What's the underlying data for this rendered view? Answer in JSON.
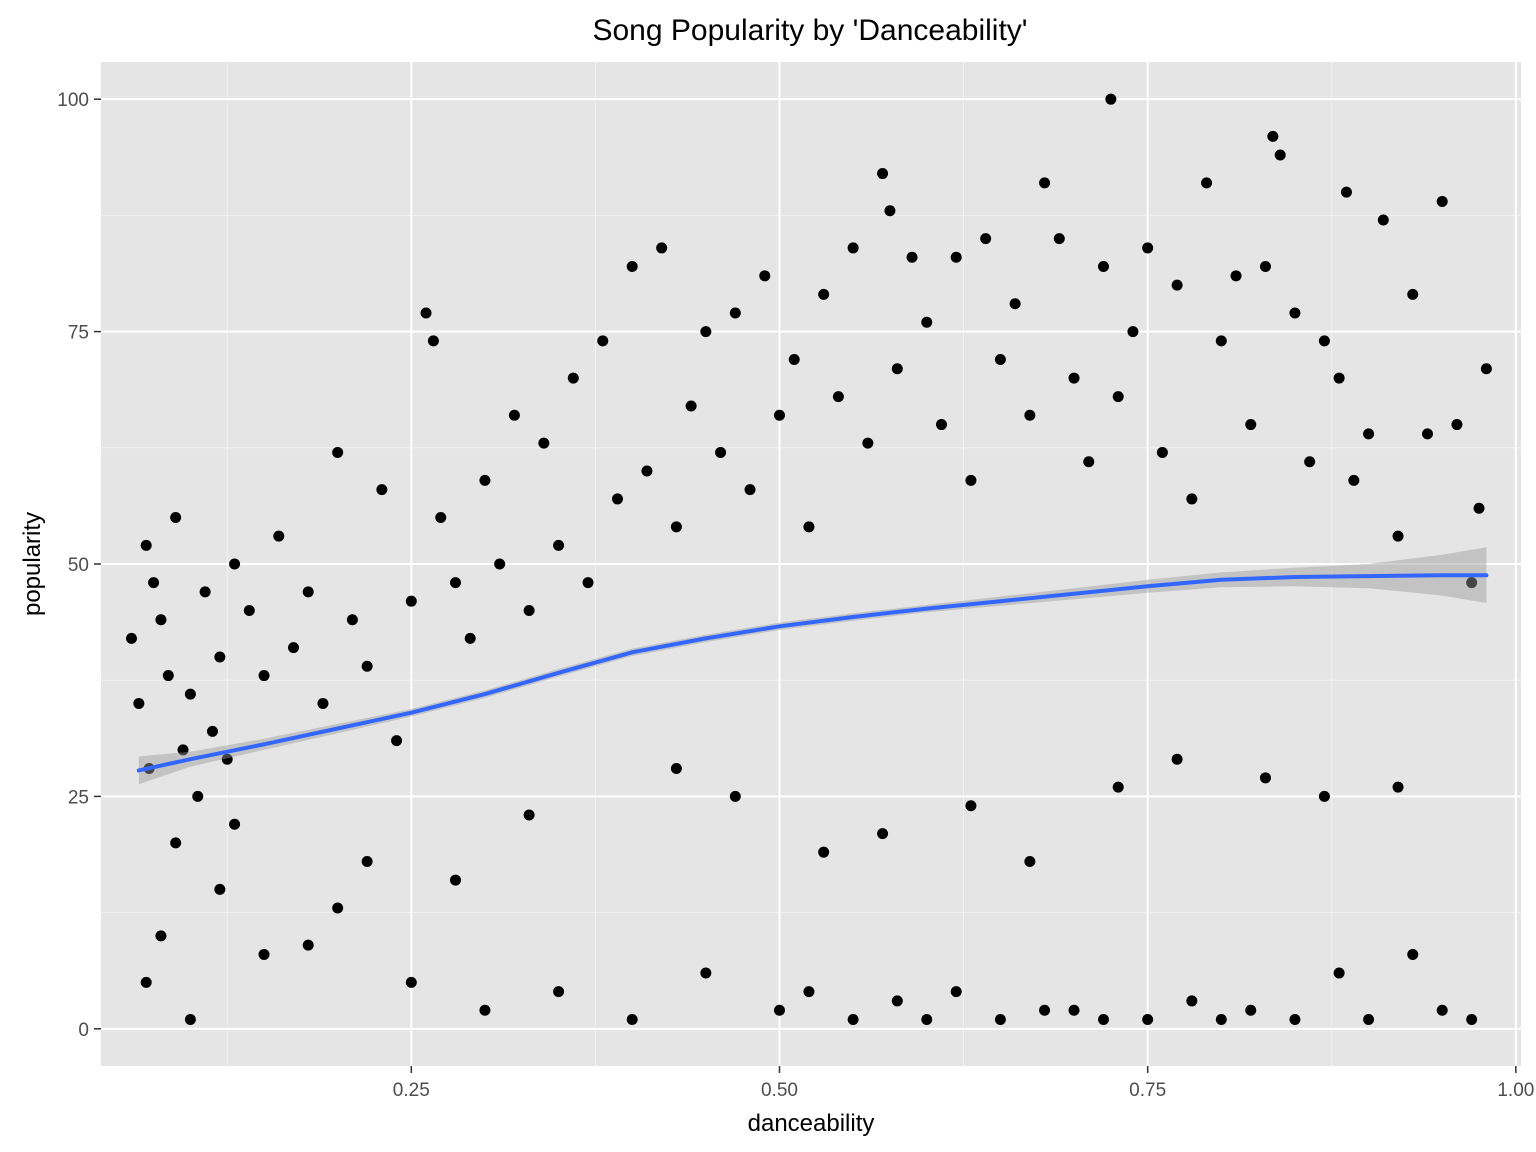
{
  "chart_data": {
    "type": "scatter",
    "title": "Song Popularity by 'Danceability'",
    "xlabel": "danceability",
    "ylabel": "popularity",
    "xlim": [
      0.0393,
      1.0035
    ],
    "ylim": [
      -4,
      104
    ],
    "x_ticks": [
      {
        "value": 0.25,
        "label": "0.25"
      },
      {
        "value": 0.5,
        "label": "0.50"
      },
      {
        "value": 0.75,
        "label": "0.75"
      },
      {
        "value": 1.0,
        "label": "1.00"
      }
    ],
    "y_ticks": [
      {
        "value": 0,
        "label": "0"
      },
      {
        "value": 25,
        "label": "25"
      },
      {
        "value": 50,
        "label": "50"
      },
      {
        "value": 75,
        "label": "75"
      },
      {
        "value": 100,
        "label": "100"
      }
    ],
    "grid": true,
    "panel_background": "#e5e5e5",
    "point_color": "#000000",
    "smooth_color": "#3366ff",
    "band_color": "#999999",
    "series": [
      {
        "kind": "points",
        "x": [
          0.06,
          0.065,
          0.07,
          0.072,
          0.075,
          0.08,
          0.085,
          0.09,
          0.095,
          0.1,
          0.105,
          0.11,
          0.115,
          0.12,
          0.125,
          0.13,
          0.14,
          0.15,
          0.16,
          0.17,
          0.18,
          0.19,
          0.2,
          0.21,
          0.22,
          0.23,
          0.24,
          0.25,
          0.26,
          0.265,
          0.27,
          0.28,
          0.29,
          0.3,
          0.31,
          0.32,
          0.33,
          0.34,
          0.35,
          0.36,
          0.37,
          0.38,
          0.39,
          0.4,
          0.41,
          0.42,
          0.43,
          0.44,
          0.45,
          0.46,
          0.47,
          0.48,
          0.49,
          0.5,
          0.51,
          0.52,
          0.53,
          0.54,
          0.55,
          0.56,
          0.57,
          0.575,
          0.58,
          0.59,
          0.6,
          0.61,
          0.62,
          0.63,
          0.64,
          0.65,
          0.66,
          0.67,
          0.68,
          0.69,
          0.7,
          0.71,
          0.72,
          0.725,
          0.73,
          0.74,
          0.75,
          0.76,
          0.77,
          0.78,
          0.79,
          0.8,
          0.81,
          0.82,
          0.83,
          0.835,
          0.84,
          0.85,
          0.86,
          0.87,
          0.88,
          0.885,
          0.89,
          0.9,
          0.91,
          0.92,
          0.93,
          0.94,
          0.95,
          0.96,
          0.97,
          0.975,
          0.98,
          0.07,
          0.1,
          0.15,
          0.2,
          0.3,
          0.4,
          0.5,
          0.55,
          0.6,
          0.65,
          0.7,
          0.75,
          0.8,
          0.85,
          0.9,
          0.95,
          0.08,
          0.12,
          0.18,
          0.25,
          0.35,
          0.45,
          0.52,
          0.58,
          0.62,
          0.68,
          0.72,
          0.78,
          0.82,
          0.88,
          0.93,
          0.97,
          0.09,
          0.13,
          0.22,
          0.28,
          0.33,
          0.43,
          0.47,
          0.53,
          0.57,
          0.63,
          0.67,
          0.73,
          0.77,
          0.83,
          0.87,
          0.92
        ],
        "y": [
          42,
          35,
          52,
          28,
          48,
          44,
          38,
          55,
          30,
          36,
          25,
          47,
          32,
          40,
          29,
          50,
          45,
          38,
          53,
          41,
          47,
          35,
          62,
          44,
          39,
          58,
          31,
          46,
          77,
          74,
          55,
          48,
          42,
          59,
          50,
          66,
          45,
          63,
          52,
          70,
          48,
          74,
          57,
          82,
          60,
          84,
          54,
          67,
          75,
          62,
          77,
          58,
          81,
          66,
          72,
          54,
          79,
          68,
          84,
          63,
          92,
          88,
          71,
          83,
          76,
          65,
          83,
          59,
          85,
          72,
          78,
          66,
          91,
          85,
          70,
          61,
          82,
          100,
          68,
          75,
          84,
          62,
          80,
          57,
          91,
          74,
          81,
          65,
          82,
          96,
          94,
          77,
          61,
          74,
          70,
          90,
          59,
          64,
          87,
          53,
          79,
          64,
          89,
          65,
          48,
          56,
          71,
          5,
          1,
          8,
          13,
          2,
          1,
          2,
          1,
          1,
          1,
          2,
          1,
          1,
          1,
          1,
          2,
          10,
          15,
          9,
          5,
          4,
          6,
          4,
          3,
          4,
          2,
          1,
          3,
          2,
          6,
          8,
          1,
          20,
          22,
          18,
          16,
          23,
          28,
          25,
          19,
          21,
          24,
          18,
          26,
          29,
          27,
          25,
          26
        ]
      },
      {
        "kind": "smooth",
        "name": "",
        "x": [
          0.065,
          0.1,
          0.15,
          0.2,
          0.25,
          0.3,
          0.35,
          0.4,
          0.45,
          0.5,
          0.55,
          0.6,
          0.65,
          0.7,
          0.75,
          0.8,
          0.85,
          0.9,
          0.95,
          0.98
        ],
        "y": [
          27.8,
          29.0,
          30.6,
          32.3,
          34.0,
          36.0,
          38.3,
          40.5,
          42.0,
          43.3,
          44.3,
          45.2,
          46.0,
          46.8,
          47.6,
          48.3,
          48.6,
          48.7,
          48.8,
          48.8
        ],
        "lower": [
          26.3,
          28.2,
          30.0,
          31.8,
          33.6,
          35.6,
          37.9,
          40.1,
          41.6,
          42.9,
          43.9,
          44.8,
          45.5,
          46.2,
          46.9,
          47.5,
          47.6,
          47.4,
          46.6,
          45.8
        ],
        "upper": [
          29.3,
          29.8,
          31.2,
          32.8,
          34.4,
          36.4,
          38.7,
          40.9,
          42.4,
          43.7,
          44.7,
          45.6,
          46.5,
          47.4,
          48.3,
          49.1,
          49.6,
          50.0,
          51.0,
          51.8
        ]
      }
    ]
  }
}
